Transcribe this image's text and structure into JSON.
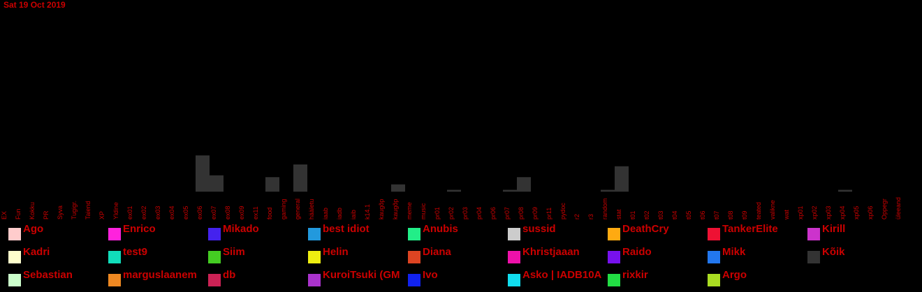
{
  "date": "Sat 19 Oct 2019",
  "colors": {
    "text": "#cc0000",
    "bar": "#333333",
    "background": "#000000"
  },
  "chart_data": {
    "type": "bar",
    "title": "",
    "xlabel": "",
    "ylabel": "",
    "categories": [
      "EX",
      "Fun",
      "Kokku",
      "PR",
      "Syva",
      "Tugigr.",
      "Taiend",
      "XP",
      "Yldine",
      "ex01",
      "ex02",
      "ex03",
      "ex04",
      "ex05",
      "ex06",
      "ex07",
      "ex08",
      "ex09",
      "ex11",
      "food",
      "gaming",
      "general",
      "hääletu",
      "iaab",
      "iadb",
      "iaib",
      "k14.1",
      "kaugõp",
      "kaugõp",
      "meme",
      "music",
      "pr01",
      "pr02",
      "pr03",
      "pr04",
      "pr06",
      "pr07",
      "pr08",
      "pr09",
      "pr11",
      "pydoc",
      "r2",
      "r3",
      "random",
      "stat",
      "t01",
      "t02",
      "t03",
      "t04",
      "t05",
      "t06",
      "t07",
      "t08",
      "t09",
      "teated",
      "valikne",
      "wat",
      "xp01",
      "xp02",
      "xp03",
      "xp04",
      "xp05",
      "xp06",
      "Oppegr",
      "üleeand"
    ],
    "series": [
      {
        "values": [
          0,
          0,
          0,
          0,
          0,
          0,
          0,
          0,
          0,
          0,
          0,
          0,
          0,
          0,
          20,
          9,
          0,
          0,
          0,
          8,
          0,
          15,
          0,
          0,
          0,
          0,
          0,
          0,
          4,
          0,
          0,
          0,
          1,
          0,
          0,
          0,
          1,
          8,
          0,
          0,
          0,
          0,
          0,
          1,
          14,
          0,
          0,
          0,
          0,
          0,
          0,
          0,
          0,
          0,
          0,
          0,
          0,
          0,
          0,
          0,
          1,
          0,
          0,
          0,
          0
        ]
      }
    ],
    "ylim": [
      0,
      100
    ],
    "grid": false
  },
  "legend": [
    {
      "label": "Ago",
      "color": "#ffcccc"
    },
    {
      "label": "Enrico",
      "color": "#ff22dd"
    },
    {
      "label": "Mikado",
      "color": "#4422ee"
    },
    {
      "label": "best idiot",
      "color": "#2299dd"
    },
    {
      "label": "Anubis",
      "color": "#22ee88"
    },
    {
      "label": "sussid",
      "color": "#cccccc"
    },
    {
      "label": "DeathCry",
      "color": "#ffaa11"
    },
    {
      "label": "TankerElite",
      "color": "#ee1133"
    },
    {
      "label": "Kirill",
      "color": "#cc33cc"
    },
    {
      "label": "Kadri",
      "color": "#ffffcc"
    },
    {
      "label": "test9",
      "color": "#11ddbb"
    },
    {
      "label": "Siim",
      "color": "#44cc22"
    },
    {
      "label": "Helin",
      "color": "#eeee11"
    },
    {
      "label": "Diana",
      "color": "#dd4422"
    },
    {
      "label": "Khristjaaan",
      "color": "#ee11aa"
    },
    {
      "label": "Raido",
      "color": "#7711ee"
    },
    {
      "label": "Mikk",
      "color": "#2277ee"
    },
    {
      "label": "Kõik",
      "color": "#333333"
    },
    {
      "label": "Sebastian",
      "color": "#ccffcc"
    },
    {
      "label": "marguslaanem",
      "color": "#ee8822"
    },
    {
      "label": "db",
      "color": "#cc2255"
    },
    {
      "label": "KuroiTsuki (GM",
      "color": "#aa33cc"
    },
    {
      "label": "Ivo",
      "color": "#1122ee"
    },
    {
      "label": "Asko | IADB10A",
      "color": "#11ddee"
    },
    {
      "label": "rixkir",
      "color": "#22dd44"
    },
    {
      "label": "Argo",
      "color": "#aadd22"
    }
  ]
}
